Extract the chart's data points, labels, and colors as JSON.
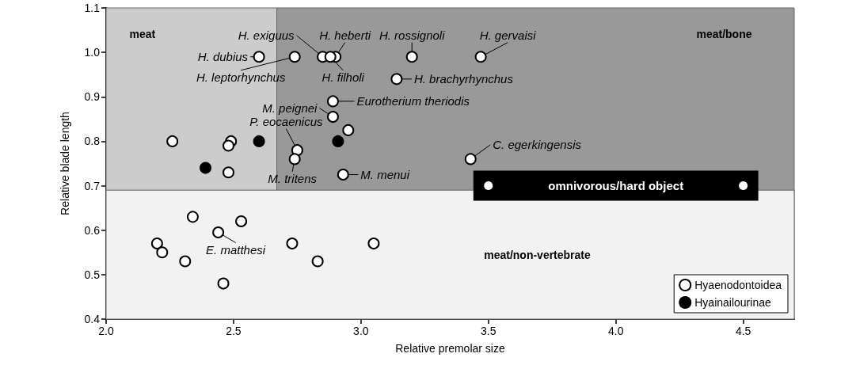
{
  "chart_data": {
    "type": "scatter",
    "xlabel": "Relative premolar size",
    "ylabel": "Relative blade length",
    "xlim": [
      2.0,
      4.7
    ],
    "ylim": [
      0.4,
      1.1
    ],
    "xticks": [
      {
        "value": 2,
        "label": "2.0"
      },
      2.5,
      {
        "value": 3,
        "label": "3.0"
      },
      3.5,
      {
        "value": 4,
        "label": "4.0"
      },
      4.5
    ],
    "yticks": [
      0.4,
      0.5,
      0.6,
      0.7,
      0.8,
      0.9,
      {
        "value": 1,
        "label": "1.0"
      },
      1.1
    ],
    "marker": "circle",
    "legend": "bottom right",
    "bands": [
      {
        "axis": "x",
        "from": 2.0,
        "to": 2.67,
        "label": "meat",
        "color": "#cccccc"
      },
      {
        "axis": "x",
        "from": 2.67,
        "to": 4.7,
        "label": "meat/bone",
        "color": "#999999"
      },
      {
        "axis": "y",
        "from": 0.4,
        "to": 0.69,
        "label": "meat/non-vertebrate",
        "color": "#f2f2f2"
      }
    ],
    "series": [
      {
        "name": "Hyaenodontoidea",
        "color": "#ffffff",
        "x": [
          2.85,
          2.9,
          3.2,
          3.47,
          2.6,
          2.74,
          2.88,
          3.14,
          2.89,
          2.89,
          2.75,
          2.74,
          2.93,
          3.43,
          2.44,
          2.95,
          2.26,
          2.49,
          2.48,
          2.48,
          2.34,
          2.53,
          2.2,
          2.22,
          2.31,
          2.46,
          2.73,
          2.83,
          3.05
        ],
        "values": [
          0.99,
          0.99,
          0.99,
          0.99,
          0.99,
          0.99,
          0.99,
          0.94,
          0.89,
          0.855,
          0.78,
          0.76,
          0.725,
          0.76,
          0.595,
          0.825,
          0.8,
          0.8,
          0.79,
          0.73,
          0.63,
          0.62,
          0.57,
          0.55,
          0.53,
          0.48,
          0.57,
          0.53,
          0.57
        ]
      },
      {
        "name": "Hyainailourinae",
        "color": "#000000",
        "x": [
          2.6,
          2.91,
          2.39
        ],
        "values": [
          0.8,
          0.8,
          0.74
        ]
      },
      {
        "name": "omnivorous/hard object",
        "type": "line",
        "color": "#000000",
        "x": [
          3.5,
          4.5
        ],
        "values": [
          0.7,
          0.7
        ]
      }
    ],
    "annotations": [
      {
        "text": "H. exiguus",
        "x": 2.85,
        "y": 0.99
      },
      {
        "text": "H. heberti",
        "x": 2.9,
        "y": 0.99
      },
      {
        "text": "H. rossignoli",
        "x": 3.2,
        "y": 0.99
      },
      {
        "text": "H. gervaisi",
        "x": 3.47,
        "y": 0.99
      },
      {
        "text": "H. dubius",
        "x": 2.6,
        "y": 0.99
      },
      {
        "text": "H. leptorhynchus",
        "x": 2.74,
        "y": 0.99
      },
      {
        "text": "H. filholi",
        "x": 2.88,
        "y": 0.99
      },
      {
        "text": "H. brachyrhynchus",
        "x": 3.14,
        "y": 0.94
      },
      {
        "text": "Eurotherium theriodis",
        "x": 2.89,
        "y": 0.89
      },
      {
        "text": "M. peignei",
        "x": 2.89,
        "y": 0.855
      },
      {
        "text": "P. eocaenicus",
        "x": 2.75,
        "y": 0.78
      },
      {
        "text": "M. tritens",
        "x": 2.74,
        "y": 0.76
      },
      {
        "text": "M. menui",
        "x": 2.93,
        "y": 0.725
      },
      {
        "text": "C. egerkingensis",
        "x": 3.43,
        "y": 0.76
      },
      {
        "text": "E. matthesi",
        "x": 2.44,
        "y": 0.595
      }
    ]
  }
}
